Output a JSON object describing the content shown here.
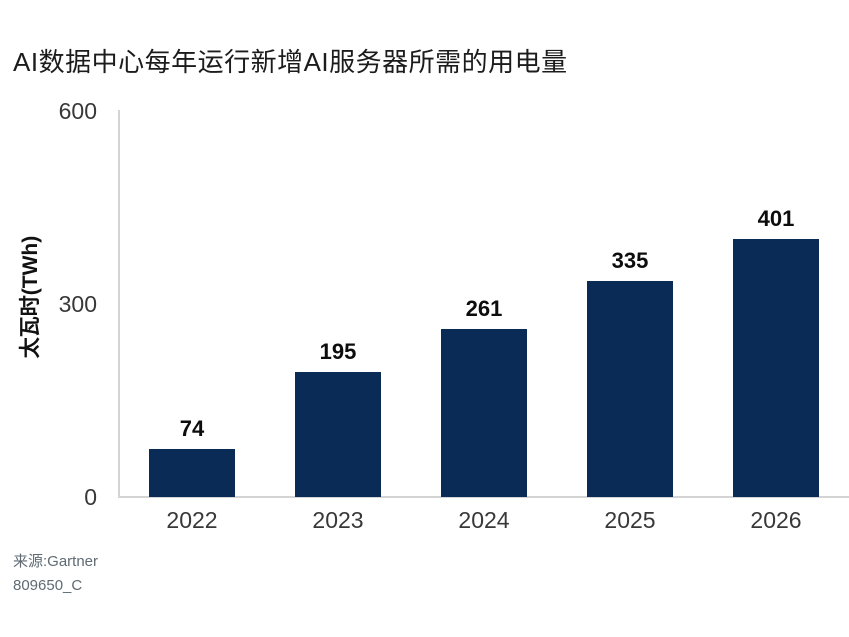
{
  "title": "AI数据中心每年运行新增AI服务器所需的用电量",
  "source": {
    "line1": "来源:Gartner",
    "line2": "809650_C"
  },
  "colors": {
    "bar": "#0b2b57",
    "axis_line": "#d4d4d4",
    "title_text": "#1c1c1c",
    "tick_text": "#383838",
    "value_text": "#0d0d0d",
    "source_text": "#5f6a72"
  },
  "chart_data": {
    "type": "bar",
    "title": "AI数据中心每年运行新增AI服务器所需的用电量",
    "categories": [
      "2022",
      "2023",
      "2024",
      "2025",
      "2026"
    ],
    "values": [
      74,
      195,
      261,
      335,
      401
    ],
    "xlabel": "",
    "ylabel": "太瓦时(TWh)",
    "yticks": [
      0,
      300,
      600
    ],
    "ylim": [
      0,
      600
    ],
    "grid": false,
    "legend": "none",
    "data_labels": true,
    "source": "来源:Gartner",
    "figure_id": "809650_C"
  }
}
